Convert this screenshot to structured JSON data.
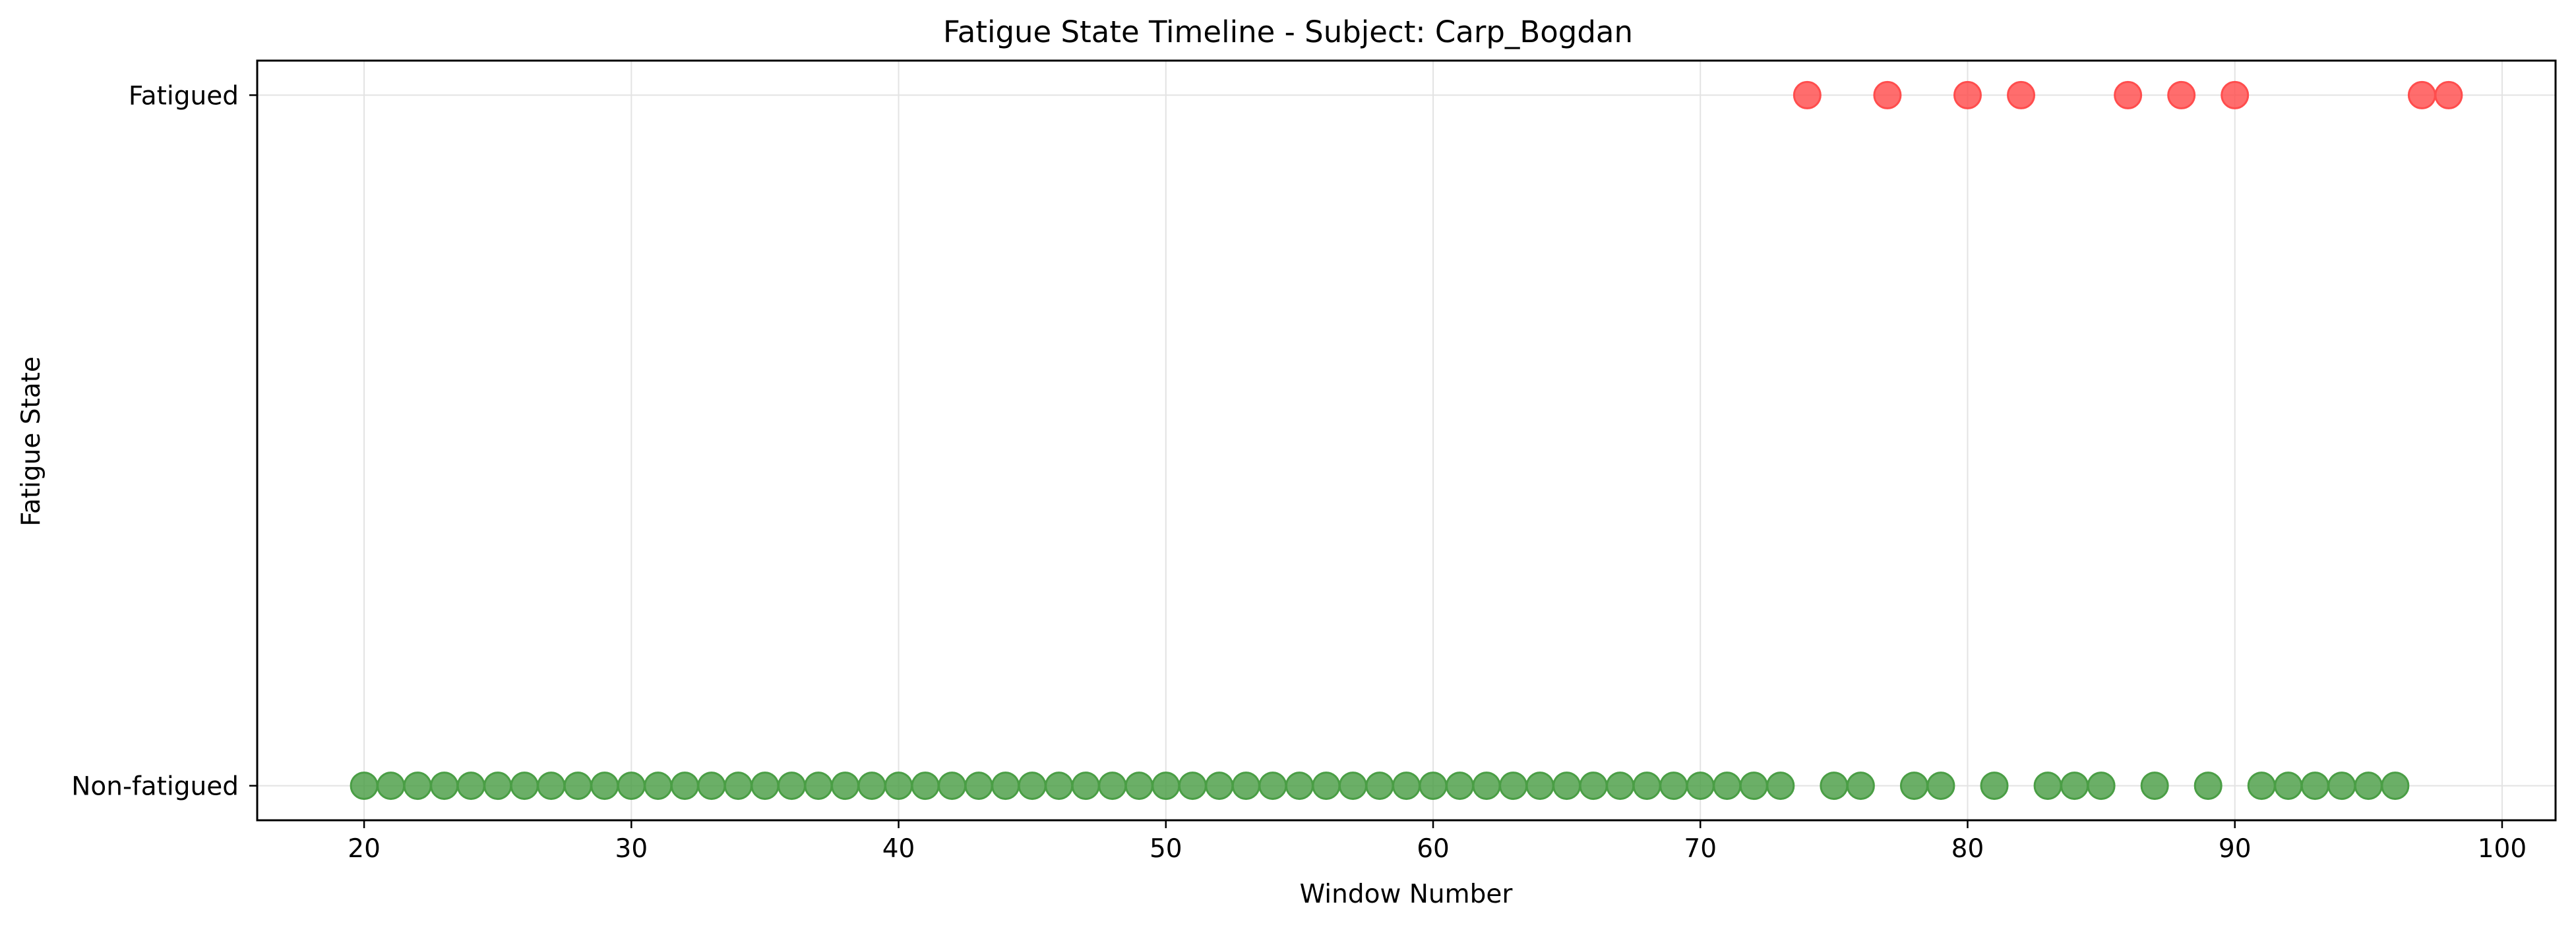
{
  "chart_data": {
    "type": "scatter",
    "title": "Fatigue State Timeline - Subject: Carp_Bogdan",
    "xlabel": "Window Number",
    "ylabel": "Fatigue State",
    "xlim": [
      16,
      102
    ],
    "ylim": [
      -0.05,
      1.05
    ],
    "x_ticks": [
      20,
      30,
      40,
      50,
      60,
      70,
      80,
      90,
      100
    ],
    "y_ticks": [
      {
        "value": 0,
        "label": "Non-fatigued"
      },
      {
        "value": 1,
        "label": "Fatigued"
      }
    ],
    "grid": true,
    "legend": "none",
    "series": [
      {
        "state": 0,
        "color": "#4a9e45",
        "x": [
          20,
          21,
          22,
          23,
          24,
          25,
          26,
          27,
          28,
          29,
          30,
          31,
          32,
          33,
          34,
          35,
          36,
          37,
          38,
          39,
          40,
          41,
          42,
          43,
          44,
          45,
          46,
          47,
          48,
          49,
          50,
          51,
          52,
          53,
          54,
          55,
          56,
          57,
          58,
          59,
          60,
          61,
          62,
          63,
          64,
          65,
          66,
          67,
          68,
          69,
          70,
          71,
          72,
          73,
          75,
          76,
          78,
          79,
          81,
          83,
          84,
          85,
          87,
          89,
          91,
          92,
          93,
          94,
          95,
          96
        ]
      },
      {
        "state": 1,
        "color": "#ff4d4d",
        "x": [
          74,
          77,
          80,
          82,
          86,
          88,
          90,
          97,
          98
        ]
      }
    ]
  }
}
